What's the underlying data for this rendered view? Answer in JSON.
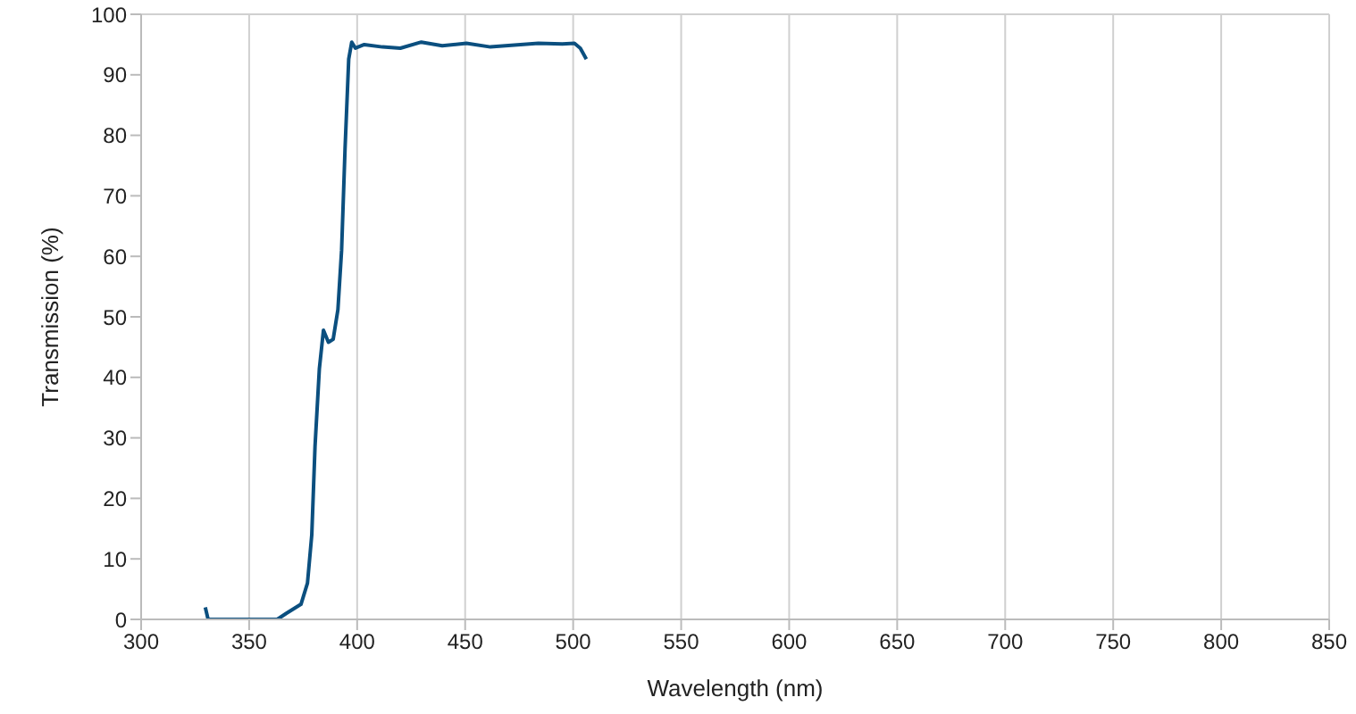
{
  "chart_data": {
    "type": "line",
    "xlabel": "Wavelength (nm)",
    "ylabel": "Transmission (%)",
    "x": [
      329.7,
      331,
      363,
      367.2,
      374,
      377,
      379,
      380.5,
      382.5,
      384.4,
      386.7,
      388.9,
      391.1,
      392.8,
      394.4,
      396.1,
      397.5,
      399.2,
      403.3,
      411.7,
      420,
      429.7,
      439.4,
      450.6,
      461.7,
      472.8,
      483.9,
      495,
      500.6,
      503.3,
      506.1
    ],
    "series": [
      {
        "color": "#0b4f7f",
        "values": [
          2.0,
          0,
          0,
          1,
          2.5,
          6,
          14,
          28.6,
          41.4,
          47.8,
          45.8,
          46.3,
          51.2,
          61,
          77.8,
          92.6,
          95.4,
          94.4,
          95.0,
          94.6,
          94.4,
          95.4,
          94.8,
          95.2,
          94.6,
          94.9,
          95.2,
          95.1,
          95.2,
          94.4,
          92.6
        ]
      }
    ],
    "xlim": [
      300,
      850
    ],
    "xticks": [
      300,
      350,
      400,
      450,
      500,
      550,
      600,
      650,
      700,
      750,
      800,
      850
    ],
    "ylim": [
      0,
      100
    ],
    "yticks": [
      0,
      10,
      20,
      30,
      40,
      50,
      60,
      70,
      80,
      90,
      100
    ],
    "grid": true,
    "legend": false,
    "marker": "none",
    "line_style": "solid"
  }
}
